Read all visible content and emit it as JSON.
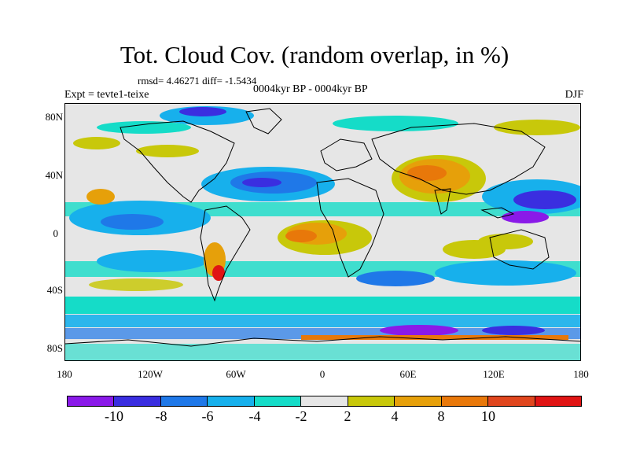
{
  "title": "Tot. Cloud Cov. (random overlap, in %)",
  "stats": "rmsd= 4.46271 diff= -1.5434",
  "expt": "Expt = tevte1-teixe",
  "period": "0004kyr BP - 0004kyr BP",
  "season": "DJF",
  "lat_labels": [
    "80N",
    "40N",
    "0",
    "40S",
    "80S"
  ],
  "lon_labels": [
    "180",
    "120W",
    "60W",
    "0",
    "60E",
    "120E",
    "180"
  ],
  "colorbar": {
    "labels": [
      "-10",
      "-8",
      "-6",
      "-4",
      "-2",
      "2",
      "4",
      "8",
      "10"
    ],
    "colors": [
      "#8a1ae8",
      "#3a2ee0",
      "#1f78e8",
      "#17b0ec",
      "#15dcc8",
      "#e6e6e6",
      "#c8c80a",
      "#e6a00a",
      "#e8780a",
      "#e0461e",
      "#e01414"
    ]
  }
}
